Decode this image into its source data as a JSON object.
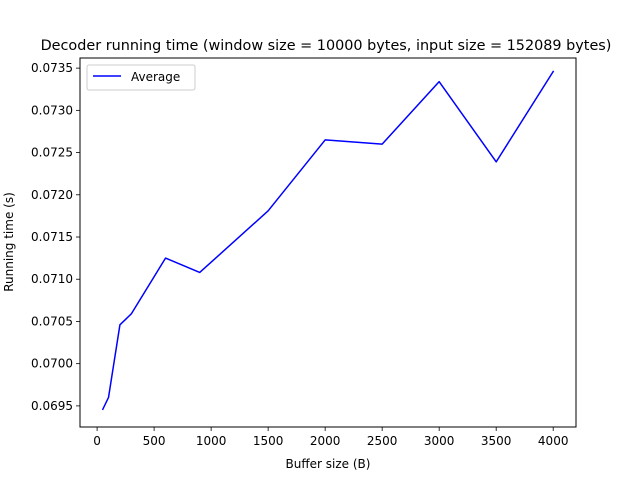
{
  "chart_data": {
    "type": "line",
    "title": "Decoder running time (window size = 10000 bytes, input size = 152089 bytes)",
    "xlabel": "Buffer size (B)",
    "ylabel": "Running time (s)",
    "xlim": [
      -150,
      4200
    ],
    "ylim": [
      0.06925,
      0.07362
    ],
    "xticks": [
      0,
      500,
      1000,
      1500,
      2000,
      2500,
      3000,
      3500,
      4000
    ],
    "xtick_labels": [
      "0",
      "500",
      "1000",
      "1500",
      "2000",
      "2500",
      "3000",
      "3500",
      "4000"
    ],
    "yticks": [
      0.0695,
      0.07,
      0.0705,
      0.071,
      0.0715,
      0.072,
      0.0725,
      0.073,
      0.0735
    ],
    "ytick_labels": [
      "0.0695",
      "0.0700",
      "0.0705",
      "0.0710",
      "0.0715",
      "0.0720",
      "0.0725",
      "0.0730",
      "0.0735"
    ],
    "grid": false,
    "legend": "upper-left",
    "series": [
      {
        "name": "Average",
        "color": "#0000ff",
        "x": [
          50,
          100,
          200,
          300,
          600,
          900,
          1500,
          2000,
          2500,
          3000,
          3500,
          4000
        ],
        "y": [
          0.06946,
          0.0696,
          0.07046,
          0.07059,
          0.07125,
          0.07108,
          0.07181,
          0.07265,
          0.0726,
          0.07334,
          0.07239,
          0.07346
        ]
      }
    ]
  }
}
